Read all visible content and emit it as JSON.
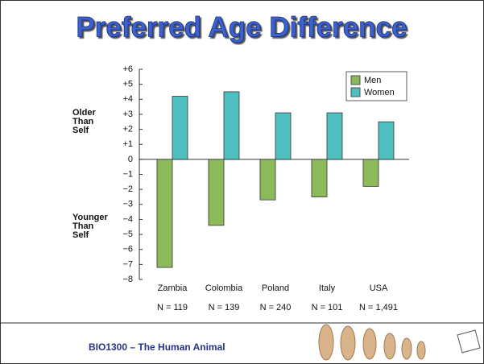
{
  "slide": {
    "title": "Preferred Age Difference",
    "footer": "BIO1300 – The Human Animal"
  },
  "chart_data": {
    "type": "bar",
    "categories": [
      "Zambia",
      "Colombia",
      "Poland",
      "Italy",
      "USA"
    ],
    "sample_sizes": [
      "N = 119",
      "N = 139",
      "N = 240",
      "N = 101",
      "N = 1,491"
    ],
    "y_side_labels": [
      [
        "Older",
        "Than",
        "Self"
      ],
      [
        "Younger",
        "Than",
        "Self"
      ]
    ],
    "series": [
      {
        "name": "Men",
        "color": "#8cba5a",
        "values": [
          -7.2,
          -4.4,
          -2.7,
          -2.5,
          -1.8
        ]
      },
      {
        "name": "Women",
        "color": "#4fc0c0",
        "values": [
          4.2,
          4.5,
          3.1,
          3.1,
          2.5
        ]
      }
    ],
    "ylim": [
      -8,
      6
    ],
    "yticks": [
      {
        "value": 6,
        "label": "+6"
      },
      {
        "value": 5,
        "label": "+5"
      },
      {
        "value": 4,
        "label": "+4"
      },
      {
        "value": 3,
        "label": "+3"
      },
      {
        "value": 2,
        "label": "+2"
      },
      {
        "value": 1,
        "label": "+1"
      },
      0,
      {
        "value": -1,
        "label": "−1"
      },
      {
        "value": -2,
        "label": "−2"
      },
      {
        "value": -3,
        "label": "−3"
      },
      {
        "value": -4,
        "label": "−4"
      },
      {
        "value": -5,
        "label": "−5"
      },
      {
        "value": -6,
        "label": "−6"
      },
      {
        "value": -7,
        "label": "−7"
      },
      {
        "value": -8,
        "label": "−8"
      }
    ],
    "legend": "top-right"
  }
}
